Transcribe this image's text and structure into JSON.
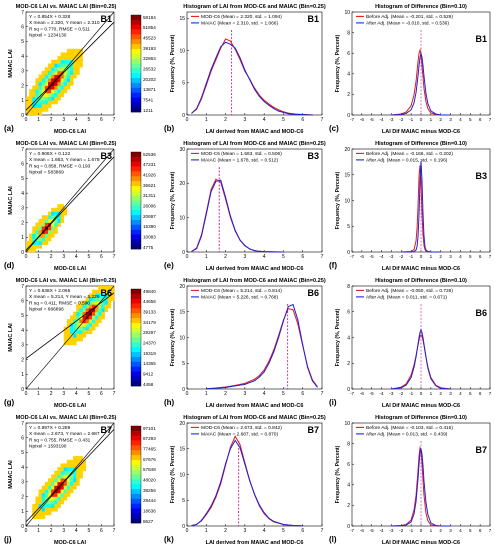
{
  "panels": [
    {
      "row_tag": "B1",
      "scatter": {
        "letter": "(a)",
        "title": "MOD-C6 LAI vs. MAIAC LAI (Bin=0.25)",
        "xlabel": "MOD-C6 LAI",
        "ylabel": "MAIAC LAI",
        "stats": [
          "Y = 0.854X + 0.328",
          "X mean = 2.320, Y mean = 2.310",
          "R sq = 0.770, RMSE = 0.511",
          "Npixel = 1234130"
        ],
        "colorbar_ticks": [
          "58184",
          "51854",
          "45523",
          "39193",
          "32863",
          "26532",
          "20202",
          "13871",
          "7541",
          "1211"
        ],
        "cluster_center": [
          2.2,
          2.2
        ],
        "cluster_spread": 0.9
      },
      "hist": {
        "letter": "(b)",
        "title": "Histogram of LAI from MOD-C6 and MAIAC (Bin=0.25)",
        "xlabel": "LAI derived from MAIAC and MOD-C6",
        "ylabel": "Frequency (%, Percent)",
        "legend": [
          "MOD-C6 (Mean = 2.320, std. = 1.094)",
          "MAIAC (Mean = 2.310, std. = 1.066)"
        ]
      },
      "diff": {
        "letter": "(c)",
        "title": "Histogram of Difference (Bin=0.10)",
        "xlabel": "LAI Dif MAIAC minus MOD-C6",
        "ylabel": "Frequency (%, Percent)",
        "legend": [
          "Before Adj. (Mean = -0.201, std. = 0.529)",
          "After Adj. (Mean = -0.010, std. = 0.536)"
        ]
      }
    },
    {
      "row_tag": "B3",
      "scatter": {
        "letter": "(d)",
        "title": "MOD-C6 LAI vs. MAIAC LAI (Bin=0.25)",
        "xlabel": "MOD-C6 LAI",
        "ylabel": "MAIAC LAI",
        "stats": [
          "Y = 0.906X + 0.122",
          "X mean = 1.663, Y mean = 1.678",
          "R sq = 0.858, RMSE = 0.193",
          "Npixel = 583869"
        ],
        "colorbar_ticks": [
          "52536",
          "47231",
          "41926",
          "36621",
          "31311",
          "26006",
          "20697",
          "15390",
          "10083",
          "4775"
        ],
        "cluster_center": [
          1.6,
          1.6
        ],
        "cluster_spread": 0.6
      },
      "hist": {
        "letter": "(e)",
        "title": "Histogram of LAI from MOD-C6 and MAIAC (Bin=0.25)",
        "xlabel": "LAI derived from MAIAC and MOD-C6",
        "ylabel": "Frequency (%, Percent)",
        "legend": [
          "MOD-C6 (Mean = 1.663, std. = 0.506)",
          "MAIAC (Mean = 1.678, std. = 0.512)"
        ]
      },
      "diff": {
        "letter": "(f)",
        "title": "Histogram of Difference (Bin=0.10)",
        "xlabel": "LAI Dif MAIAC minus MOD-C6",
        "ylabel": "Frequency (%, Percent)",
        "legend": [
          "Before Adj. (Mean = -0.166, std. = 0.202)",
          "After Adj. (Mean = 0.015, std. = 0.196)"
        ]
      }
    },
    {
      "row_tag": "B6",
      "scatter": {
        "letter": "(g)",
        "title": "MOD-C6 LAI vs. MAIAC LAI (Bin=0.25)",
        "xlabel": "MOD-C6 LAI",
        "ylabel": "MAIAC LAI",
        "stats": [
          "Y = 0.638X + 2.065",
          "X mean = 5.214, Y mean = 5.226",
          "R sq = 0.411, RMSE = 0.590",
          "Npixel = 666896"
        ],
        "colorbar_ticks": [
          "49840",
          "44656",
          "39133",
          "34179",
          "29297",
          "24370",
          "19319",
          "14365",
          "9412",
          "4458"
        ],
        "cluster_center": [
          5.0,
          5.1
        ],
        "cluster_spread": 0.8
      },
      "hist": {
        "letter": "(h)",
        "title": "Histogram of LAI from MOD-C6 and MAIAC (Bin=0.25)",
        "xlabel": "LAI derived from MAIAC and MOD-C6",
        "ylabel": "Frequency (%, Percent)",
        "legend": [
          "MOD-C6 (Mean = 5.214, std. = 0.814)",
          "MAIAC (Mean = 5.226, std. = 0.768)"
        ]
      },
      "diff": {
        "letter": "(i)",
        "title": "Histogram of Difference (Bin=0.10)",
        "xlabel": "LAI Dif MAIAC minus MOD-C6",
        "ylabel": "Frequency (%, Percent)",
        "legend": [
          "Before Adj. (Mean = -0.050, std. = 0.726)",
          "After Adj. (Mean = 0.011, std. = 0.671)"
        ]
      }
    },
    {
      "row_tag": "B7",
      "scatter": {
        "letter": "(j)",
        "title": "MOD-C6 LAI vs. MAIAC LAI (Bin=0.25)",
        "xlabel": "MOD-C6 LAI",
        "ylabel": "MAIAC LAI",
        "stats": [
          "Y = 0.897X + 0.289",
          "X mean = 2.673, Y mean = 2.687",
          "R sq = 0.755, RMSE = 0.431",
          "Npixel = 1593190"
        ],
        "colorbar_ticks": [
          "97101",
          "87293",
          "77465",
          "67676",
          "57848",
          "48020",
          "38256",
          "28444",
          "18636",
          "8627"
        ],
        "cluster_center": [
          2.6,
          2.6
        ],
        "cluster_spread": 0.8
      },
      "hist": {
        "letter": "(k)",
        "title": "Histogram of LAI from MOD-C6 and MAIAC (Bin=0.25)",
        "xlabel": "LAI derived from MAIAC and MOD-C6",
        "ylabel": "Frequency (%, Percent)",
        "legend": [
          "MOD-C6 (Mean = 2.673, std. = 0.842)",
          "MAIAC (Mean = 2.687, std. = 0.870)"
        ]
      },
      "diff": {
        "letter": "(l)",
        "title": "Histogram of Difference (Bin=0.10)",
        "xlabel": "LAI Dif MAIAC minus MOD-C6",
        "ylabel": "Frequency (%, Percent)",
        "legend": [
          "Before Adj. (Mean = -0.103, std. = 0.415)",
          "After Adj. (Mean = 0.013, std. = 0.439)"
        ]
      }
    }
  ],
  "colors": {
    "series_a": "#e8161b",
    "series_b": "#1f22d6",
    "mean_line": "#c2148a",
    "scatter_bg": "#ffd200",
    "fit_line": "#000000"
  },
  "chart_data": [
    {
      "type": "heatmap",
      "panel": "(a)",
      "xlabel": "MOD-C6 LAI",
      "ylabel": "MAIAC LAI",
      "xlim": [
        0,
        7
      ],
      "ylim": [
        0,
        7
      ],
      "fit": {
        "slope": 0.854,
        "intercept": 0.328
      },
      "colorbar": [
        1211,
        58184
      ]
    },
    {
      "type": "line",
      "panel": "(b)",
      "xlabel": "LAI derived from MAIAC and MOD-C6",
      "ylabel": "Frequency (%, Percent)",
      "xlim": [
        0,
        7
      ],
      "ylim": [
        0,
        16
      ],
      "x": [
        0.25,
        0.5,
        0.75,
        1.0,
        1.25,
        1.5,
        1.75,
        2.0,
        2.25,
        2.5,
        2.75,
        3.0,
        3.25,
        3.5,
        3.75,
        4.0,
        4.25,
        4.5,
        4.75,
        5.0,
        5.25,
        5.5,
        5.75,
        6.0,
        6.25,
        6.5
      ],
      "series": [
        {
          "name": "MOD-C6 (Mean = 2.320, std. = 1.094)",
          "values": [
            0.3,
            0.9,
            2.5,
            4.6,
            6.8,
            8.6,
            10.4,
            11.8,
            11.5,
            10.2,
            8.6,
            6.8,
            5.6,
            4.2,
            3.1,
            2.3,
            1.7,
            1.2,
            0.8,
            0.5,
            0.3,
            0.2,
            0.1,
            0.1,
            0.05,
            0.02
          ]
        },
        {
          "name": "MAIAC (Mean = 2.310, std. = 1.066)",
          "values": [
            0.3,
            1.0,
            2.7,
            4.9,
            7.1,
            8.9,
            10.6,
            11.3,
            11.0,
            10.4,
            8.9,
            7.0,
            5.5,
            4.0,
            2.9,
            2.1,
            1.5,
            1.0,
            0.6,
            0.4,
            0.2,
            0.1,
            0.1,
            0.05,
            0.02,
            0.01
          ]
        }
      ],
      "mean_lines": [
        2.32,
        2.31
      ]
    },
    {
      "type": "line",
      "panel": "(c)",
      "xlabel": "LAI Dif MAIAC minus MOD-C6",
      "ylabel": "Frequency (%, Percent)",
      "xlim": [
        -7,
        7
      ],
      "ylim": [
        0,
        10
      ],
      "x": [
        -3.0,
        -2.0,
        -1.5,
        -1.0,
        -0.7,
        -0.5,
        -0.3,
        -0.2,
        -0.1,
        0.0,
        0.1,
        0.2,
        0.3,
        0.5,
        0.7,
        1.0,
        1.5,
        2.0,
        3.0
      ],
      "series": [
        {
          "name": "Before Adj. (Mean = -0.201, std. = 0.529)",
          "values": [
            0.0,
            0.1,
            0.3,
            0.9,
            2.0,
            3.3,
            5.2,
            6.0,
            6.3,
            5.9,
            4.8,
            3.7,
            2.6,
            1.3,
            0.6,
            0.2,
            0.05,
            0.0,
            0.0
          ]
        },
        {
          "name": "After Adj. (Mean = -0.010, std. = 0.536)",
          "values": [
            0.0,
            0.05,
            0.15,
            0.5,
            1.2,
            2.2,
            3.8,
            4.8,
            5.6,
            6.0,
            5.6,
            4.8,
            3.8,
            2.1,
            1.1,
            0.4,
            0.1,
            0.0,
            0.0
          ]
        }
      ]
    },
    {
      "type": "heatmap",
      "panel": "(d)",
      "xlabel": "MOD-C6 LAI",
      "ylabel": "MAIAC LAI",
      "xlim": [
        0,
        7
      ],
      "ylim": [
        0,
        7
      ],
      "fit": {
        "slope": 0.906,
        "intercept": 0.122
      },
      "colorbar": [
        4775,
        52536
      ]
    },
    {
      "type": "line",
      "panel": "(e)",
      "xlabel": "LAI derived from MAIAC and MOD-C6",
      "ylabel": "Frequency (%, Percent)",
      "xlim": [
        0,
        7
      ],
      "ylim": [
        0,
        30
      ],
      "x": [
        0.25,
        0.5,
        0.75,
        1.0,
        1.25,
        1.5,
        1.75,
        2.0,
        2.25,
        2.5,
        2.75,
        3.0,
        3.25,
        3.5,
        3.75,
        4.0,
        4.5,
        5.0
      ],
      "series": [
        {
          "name": "MOD-C6 (Mean = 1.663, std. = 0.506)",
          "values": [
            0.2,
            1.2,
            5.0,
            11.5,
            18.2,
            21.2,
            20.3,
            15.4,
            10.1,
            6.1,
            3.4,
            1.8,
            0.9,
            0.4,
            0.2,
            0.1,
            0.02,
            0.0
          ]
        },
        {
          "name": "MAIAC (Mean = 1.678, std. = 0.512)",
          "values": [
            0.2,
            1.0,
            4.6,
            11.0,
            17.6,
            20.6,
            20.9,
            16.0,
            10.5,
            6.3,
            3.5,
            1.9,
            0.9,
            0.4,
            0.2,
            0.1,
            0.02,
            0.0
          ]
        }
      ],
      "mean_lines": [
        1.663,
        1.678
      ]
    },
    {
      "type": "line",
      "panel": "(f)",
      "xlabel": "LAI Dif MAIAC minus MOD-C6",
      "ylabel": "Frequency (%, Percent)",
      "xlim": [
        -7,
        7
      ],
      "ylim": [
        0,
        20
      ],
      "x": [
        -2.0,
        -1.0,
        -0.7,
        -0.5,
        -0.4,
        -0.3,
        -0.2,
        -0.1,
        0.0,
        0.1,
        0.2,
        0.3,
        0.4,
        0.5,
        0.7,
        1.0,
        2.0
      ],
      "series": [
        {
          "name": "Before Adj. (Mean = -0.166, std. = 0.202)",
          "values": [
            0.0,
            0.1,
            0.5,
            2.2,
            4.6,
            9.0,
            14.8,
            16.8,
            13.2,
            7.6,
            3.4,
            1.3,
            0.5,
            0.2,
            0.05,
            0.0,
            0.0
          ]
        },
        {
          "name": "After Adj. (Mean = 0.015, std. = 0.196)",
          "values": [
            0.0,
            0.0,
            0.1,
            0.4,
            1.1,
            3.0,
            7.4,
            13.6,
            17.6,
            14.0,
            7.6,
            3.2,
            1.1,
            0.4,
            0.1,
            0.0,
            0.0
          ]
        }
      ]
    },
    {
      "type": "heatmap",
      "panel": "(g)",
      "xlabel": "MOD-C6 LAI",
      "ylabel": "MAIAC LAI",
      "xlim": [
        0,
        7
      ],
      "ylim": [
        0,
        7
      ],
      "fit": {
        "slope": 0.638,
        "intercept": 2.065
      },
      "colorbar": [
        4458,
        49840
      ]
    },
    {
      "type": "line",
      "panel": "(h)",
      "xlabel": "LAI derived from MAIAC and MOD-C6",
      "ylabel": "Frequency (%, Percent)",
      "xlim": [
        0,
        7
      ],
      "ylim": [
        0,
        20
      ],
      "x": [
        1.0,
        1.5,
        2.0,
        2.5,
        3.0,
        3.5,
        3.75,
        4.0,
        4.25,
        4.5,
        4.75,
        5.0,
        5.25,
        5.5,
        5.75,
        6.0,
        6.25,
        6.5,
        6.75
      ],
      "series": [
        {
          "name": "MOD-C6 (Mean = 5.214, std. = 0.814)",
          "values": [
            0.05,
            0.2,
            0.4,
            0.7,
            1.1,
            1.9,
            2.6,
            3.7,
            5.4,
            7.6,
            10.4,
            13.4,
            15.6,
            15.4,
            12.6,
            8.4,
            4.4,
            1.8,
            0.5
          ]
        },
        {
          "name": "MAIAC (Mean = 5.226, std. = 0.768)",
          "values": [
            0.05,
            0.15,
            0.3,
            0.6,
            0.9,
            1.6,
            2.3,
            3.3,
            5.0,
            7.2,
            10.0,
            13.2,
            16.0,
            16.4,
            13.4,
            8.6,
            4.2,
            1.6,
            0.4
          ]
        }
      ],
      "mean_lines": [
        5.214,
        5.226
      ]
    },
    {
      "type": "line",
      "panel": "(i)",
      "xlabel": "LAI Dif MAIAC minus MOD-C6",
      "ylabel": "Frequency (%, Percent)",
      "xlim": [
        -7,
        7
      ],
      "ylim": [
        0,
        8
      ],
      "x": [
        -3.0,
        -2.0,
        -1.5,
        -1.0,
        -0.7,
        -0.5,
        -0.3,
        -0.2,
        -0.1,
        0.0,
        0.1,
        0.2,
        0.3,
        0.5,
        0.7,
        1.0,
        1.5,
        2.0,
        3.0
      ],
      "series": [
        {
          "name": "Before Adj. (Mean = -0.050, std. = 0.726)",
          "values": [
            0.0,
            0.15,
            0.4,
            1.1,
            1.9,
            2.6,
            3.4,
            3.8,
            4.1,
            4.2,
            4.1,
            3.8,
            3.4,
            2.5,
            1.7,
            0.9,
            0.3,
            0.1,
            0.0
          ]
        },
        {
          "name": "After Adj. (Mean = 0.011, std. = 0.671)",
          "values": [
            0.0,
            0.1,
            0.3,
            0.9,
            1.7,
            2.5,
            3.5,
            4.0,
            4.4,
            4.6,
            4.4,
            4.0,
            3.5,
            2.5,
            1.6,
            0.8,
            0.25,
            0.05,
            0.0
          ]
        }
      ]
    },
    {
      "type": "heatmap",
      "panel": "(j)",
      "xlabel": "MOD-C6 LAI",
      "ylabel": "MAIAC LAI",
      "xlim": [
        0,
        7
      ],
      "ylim": [
        0,
        7
      ],
      "fit": {
        "slope": 0.897,
        "intercept": 0.289
      },
      "colorbar": [
        8627,
        97101
      ]
    },
    {
      "type": "line",
      "panel": "(k)",
      "xlabel": "LAI derived from MAIAC and MOD-C6",
      "ylabel": "Frequency (%, Percent)",
      "xlim": [
        0,
        7
      ],
      "ylim": [
        0,
        20
      ],
      "x": [
        0.25,
        0.5,
        0.75,
        1.0,
        1.25,
        1.5,
        1.75,
        2.0,
        2.25,
        2.5,
        2.75,
        3.0,
        3.25,
        3.5,
        3.75,
        4.0,
        4.25,
        4.5,
        5.0,
        5.5,
        6.0
      ],
      "series": [
        {
          "name": "MOD-C6 (Mean = 2.673, std. = 0.842)",
          "values": [
            0.1,
            0.3,
            1.0,
            2.2,
            3.6,
            5.6,
            8.2,
            11.8,
            15.3,
            17.4,
            15.8,
            12.3,
            8.9,
            6.1,
            3.9,
            2.4,
            1.4,
            0.8,
            0.3,
            0.1,
            0.02
          ]
        },
        {
          "name": "MAIAC (Mean = 2.687, std. = 0.870)",
          "values": [
            0.1,
            0.3,
            1.1,
            2.4,
            3.9,
            5.9,
            8.6,
            12.1,
            15.0,
            16.6,
            15.2,
            12.0,
            8.8,
            6.2,
            4.1,
            2.6,
            1.5,
            0.9,
            0.3,
            0.1,
            0.02
          ]
        }
      ],
      "mean_lines": [
        2.673,
        2.687
      ]
    },
    {
      "type": "line",
      "panel": "(l)",
      "xlabel": "LAI Dif MAIAC minus MOD-C6",
      "ylabel": "Frequency (%, Percent)",
      "xlim": [
        -7,
        7
      ],
      "ylim": [
        0,
        10
      ],
      "x": [
        -3.0,
        -2.0,
        -1.5,
        -1.0,
        -0.7,
        -0.5,
        -0.3,
        -0.2,
        -0.1,
        0.0,
        0.1,
        0.2,
        0.3,
        0.5,
        0.7,
        1.0,
        1.5,
        2.0,
        3.0
      ],
      "series": [
        {
          "name": "Before Adj. (Mean = -0.103, std. = 0.415)",
          "values": [
            0.0,
            0.05,
            0.15,
            0.6,
            1.6,
            3.0,
            5.4,
            6.8,
            7.6,
            7.4,
            6.1,
            4.5,
            3.0,
            1.3,
            0.5,
            0.1,
            0.02,
            0.0,
            0.0
          ]
        },
        {
          "name": "After Adj. (Mean = 0.013, std. = 0.439)",
          "values": [
            0.0,
            0.03,
            0.1,
            0.4,
            1.2,
            2.4,
            4.6,
            6.0,
            7.1,
            7.5,
            7.0,
            5.9,
            4.4,
            2.3,
            1.1,
            0.3,
            0.05,
            0.0,
            0.0
          ]
        }
      ]
    }
  ]
}
